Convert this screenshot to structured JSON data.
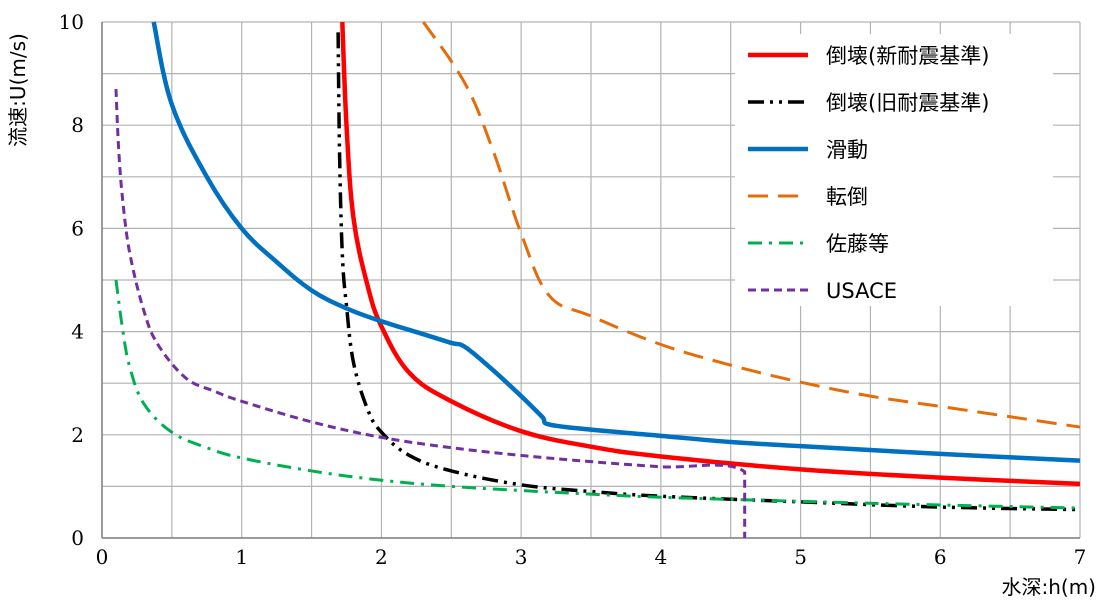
{
  "chart_data": {
    "type": "line",
    "xlabel": "水深:h(m)",
    "ylabel": "流速:U(m/s)",
    "xlim": [
      0,
      7
    ],
    "ylim": [
      0,
      10
    ],
    "x_ticks": [
      "0",
      "1",
      "2",
      "3",
      "4",
      "5",
      "6",
      "7"
    ],
    "y_ticks": [
      "0",
      "2",
      "4",
      "6",
      "8",
      "10"
    ],
    "grid": true,
    "legend_position": "top-right",
    "series": [
      {
        "name": "倒壊(新耐震基準)",
        "color": "#ff0000",
        "style": "solid",
        "points": [
          [
            1.72,
            10.0
          ],
          [
            1.75,
            8.0
          ],
          [
            1.8,
            6.2
          ],
          [
            1.9,
            4.9
          ],
          [
            2.0,
            4.1
          ],
          [
            2.2,
            3.2
          ],
          [
            2.5,
            2.65
          ],
          [
            3.0,
            2.07
          ],
          [
            3.5,
            1.77
          ],
          [
            4.0,
            1.58
          ],
          [
            5.0,
            1.33
          ],
          [
            6.0,
            1.17
          ],
          [
            7.0,
            1.05
          ]
        ]
      },
      {
        "name": "倒壊(旧耐震基準)",
        "color": "#000000",
        "style": "dash-dot-dot",
        "points": [
          [
            1.69,
            9.8
          ],
          [
            1.7,
            7.5
          ],
          [
            1.72,
            5.5
          ],
          [
            1.75,
            4.5
          ],
          [
            1.8,
            3.4
          ],
          [
            1.9,
            2.5
          ],
          [
            2.0,
            2.05
          ],
          [
            2.2,
            1.6
          ],
          [
            2.5,
            1.3
          ],
          [
            3.0,
            1.03
          ],
          [
            3.5,
            0.9
          ],
          [
            4.0,
            0.81
          ],
          [
            5.0,
            0.7
          ],
          [
            6.0,
            0.6
          ],
          [
            7.0,
            0.55
          ]
        ]
      },
      {
        "name": "滑動",
        "color": "#0070c0",
        "style": "solid",
        "points": [
          [
            0.37,
            10.0
          ],
          [
            0.5,
            8.4
          ],
          [
            0.75,
            7.0
          ],
          [
            1.0,
            6.0
          ],
          [
            1.25,
            5.35
          ],
          [
            1.5,
            4.8
          ],
          [
            1.75,
            4.45
          ],
          [
            2.0,
            4.2
          ],
          [
            2.3,
            3.95
          ],
          [
            2.5,
            3.78
          ],
          [
            2.6,
            3.7
          ],
          [
            2.8,
            3.25
          ],
          [
            3.0,
            2.75
          ],
          [
            3.15,
            2.35
          ],
          [
            3.2,
            2.2
          ],
          [
            3.5,
            2.1
          ],
          [
            4.0,
            1.98
          ],
          [
            4.5,
            1.86
          ],
          [
            5.0,
            1.78
          ],
          [
            6.0,
            1.63
          ],
          [
            7.0,
            1.5
          ]
        ]
      },
      {
        "name": "転倒",
        "color": "#e46c0a",
        "style": "dash",
        "points": [
          [
            2.3,
            10.0
          ],
          [
            2.6,
            8.8
          ],
          [
            2.8,
            7.5
          ],
          [
            3.0,
            5.9
          ],
          [
            3.2,
            4.7
          ],
          [
            3.5,
            4.3
          ],
          [
            4.0,
            3.75
          ],
          [
            4.5,
            3.35
          ],
          [
            5.0,
            3.02
          ],
          [
            5.5,
            2.75
          ],
          [
            6.0,
            2.55
          ],
          [
            6.5,
            2.35
          ],
          [
            7.0,
            2.15
          ]
        ]
      },
      {
        "name": "佐藤等",
        "color": "#00b050",
        "style": "dash-dot",
        "points": [
          [
            0.1,
            5.0
          ],
          [
            0.15,
            4.0
          ],
          [
            0.2,
            3.3
          ],
          [
            0.3,
            2.6
          ],
          [
            0.5,
            2.05
          ],
          [
            0.75,
            1.75
          ],
          [
            1.0,
            1.55
          ],
          [
            1.5,
            1.3
          ],
          [
            2.0,
            1.12
          ],
          [
            2.5,
            1.0
          ],
          [
            3.0,
            0.92
          ],
          [
            3.5,
            0.85
          ],
          [
            4.0,
            0.79
          ],
          [
            5.0,
            0.71
          ],
          [
            6.0,
            0.64
          ],
          [
            7.0,
            0.58
          ]
        ]
      },
      {
        "name": "USACE",
        "color": "#7030a0",
        "style": "short-dash",
        "points": [
          [
            0.1,
            8.7
          ],
          [
            0.12,
            7.5
          ],
          [
            0.15,
            6.5
          ],
          [
            0.2,
            5.5
          ],
          [
            0.3,
            4.4
          ],
          [
            0.4,
            3.75
          ],
          [
            0.6,
            3.1
          ],
          [
            0.8,
            2.85
          ],
          [
            1.0,
            2.65
          ],
          [
            1.5,
            2.25
          ],
          [
            2.0,
            1.95
          ],
          [
            2.5,
            1.75
          ],
          [
            3.0,
            1.6
          ],
          [
            3.5,
            1.48
          ],
          [
            4.0,
            1.38
          ],
          [
            4.6,
            1.28
          ],
          [
            4.6,
            0.0
          ]
        ]
      }
    ]
  }
}
